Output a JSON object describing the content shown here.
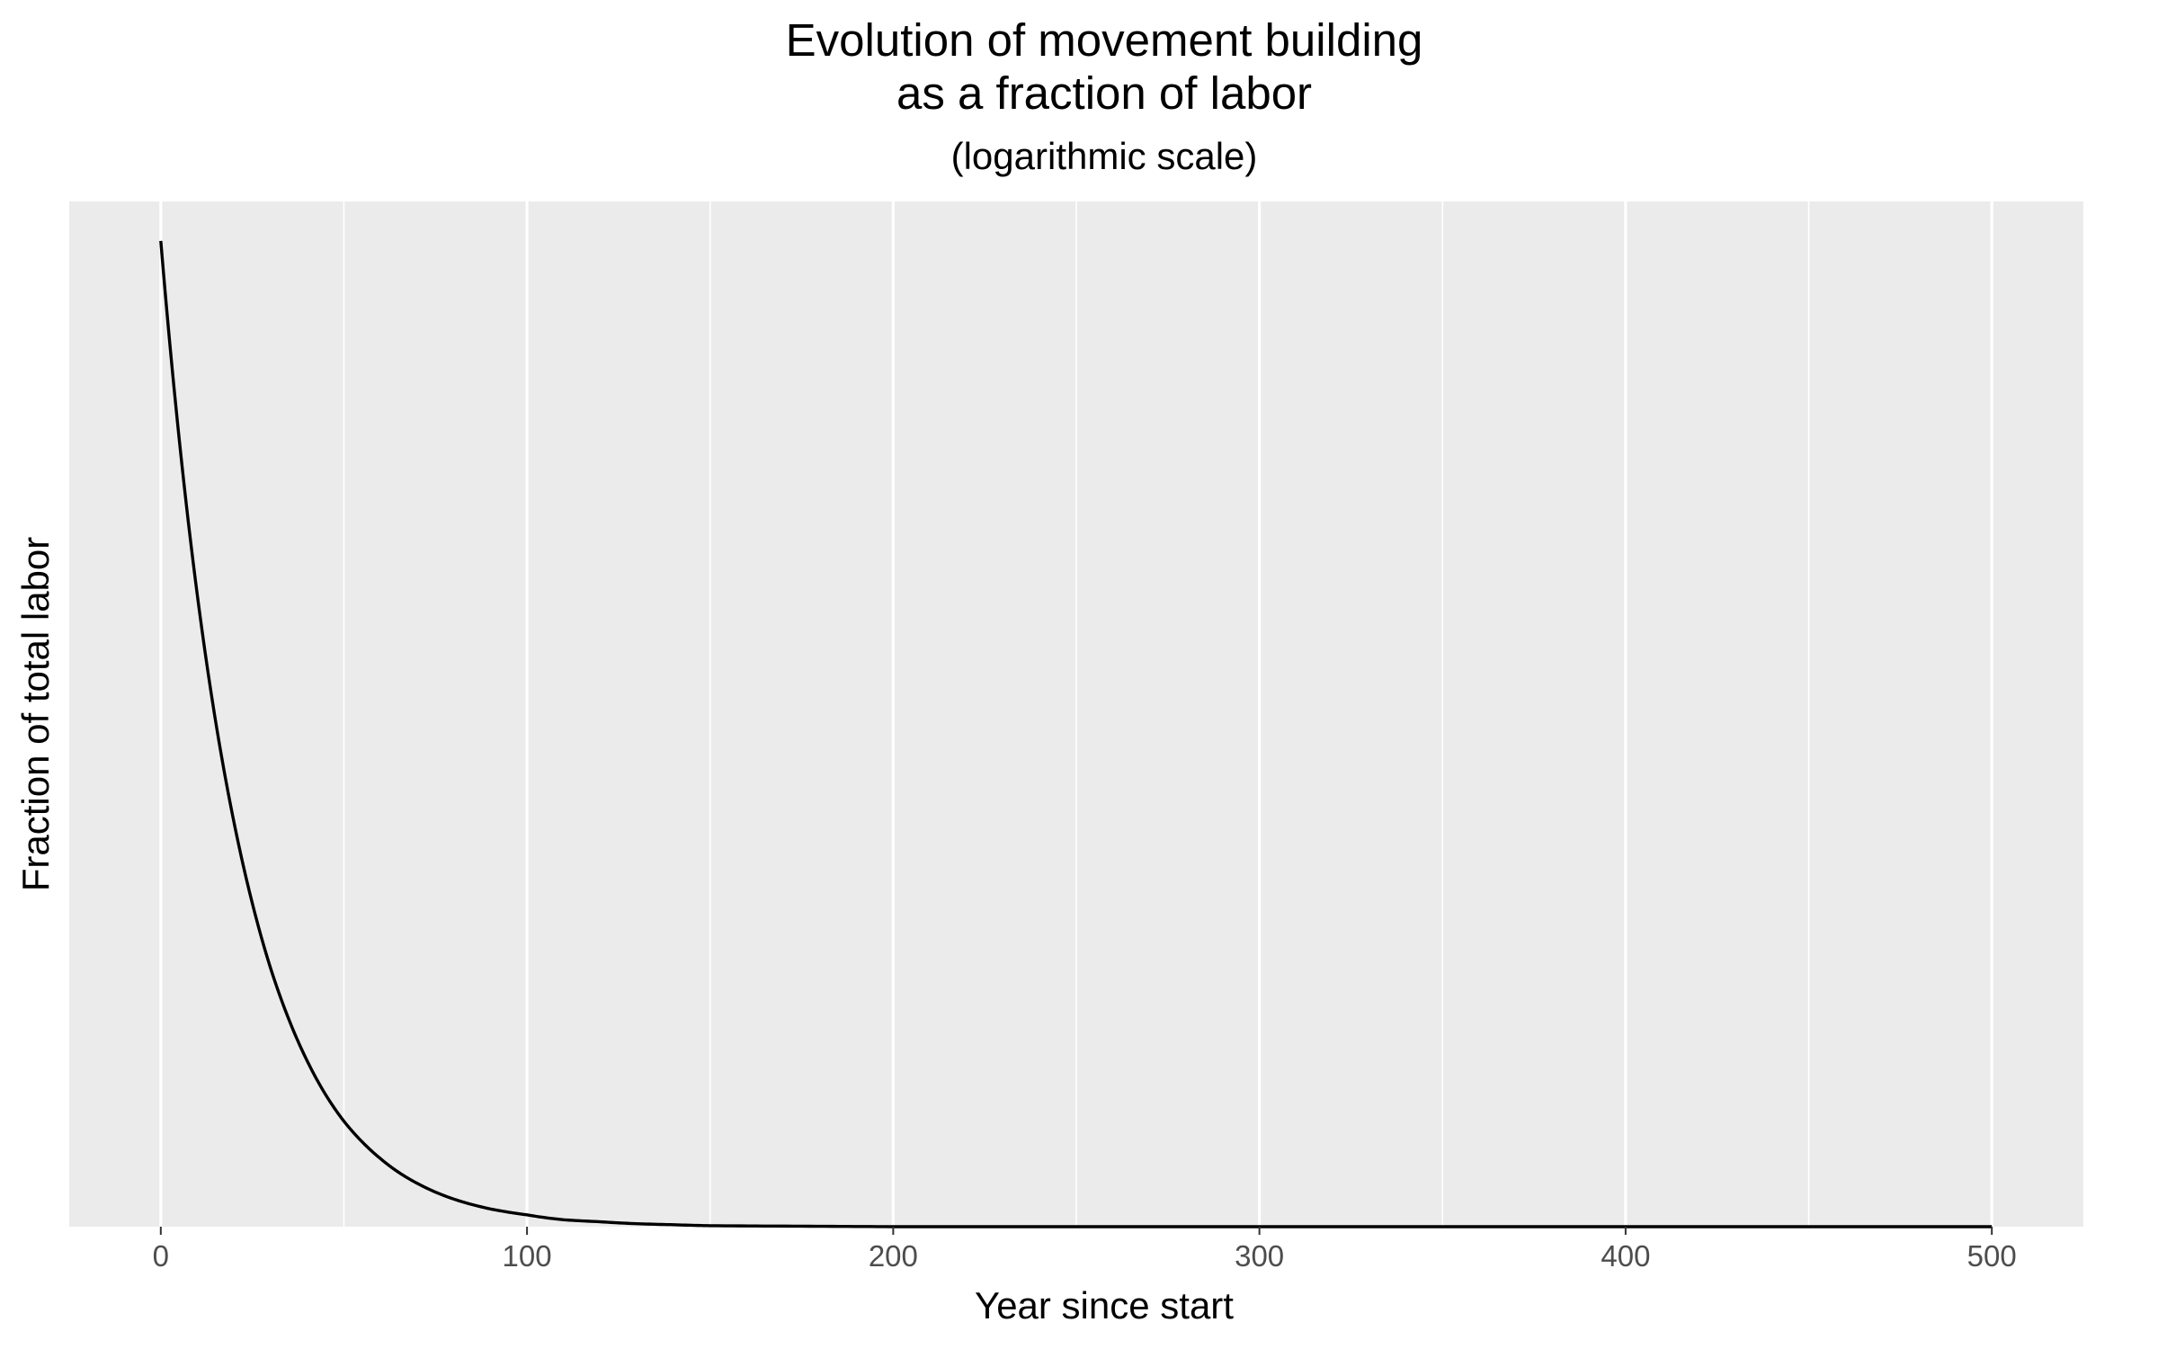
{
  "chart_data": {
    "type": "line",
    "title": "Evolution of movement building\nas a fraction of labor",
    "title_lines": [
      "Evolution of movement building",
      "as a fraction of labor"
    ],
    "subtitle": "(logarithmic scale)",
    "xlabel": "Year since start",
    "ylabel": "Fraction of total labor",
    "xlim": [
      -25,
      525
    ],
    "x_major_ticks": [
      0,
      100,
      200,
      300,
      400,
      500
    ],
    "x_minor_ticks": [
      50,
      150,
      250,
      350,
      450
    ],
    "x_tick_labels": [
      "0",
      "100",
      "200",
      "300",
      "400",
      "500"
    ],
    "y_tick_labels": [],
    "ylim": [
      0,
      1.04
    ],
    "grid": true,
    "background_color": "#ebebeb",
    "gridline_color": "#ffffff",
    "line_color": "#000000",
    "series": [
      {
        "x": [
          0,
          5,
          10,
          15,
          20,
          25,
          30,
          35,
          40,
          45,
          50,
          55,
          60,
          65,
          70,
          80,
          90,
          100,
          110,
          120,
          130,
          140,
          150,
          175,
          200,
          250,
          300,
          350,
          400,
          450,
          500
        ],
        "y": [
          1.0,
          0.8,
          0.64,
          0.512,
          0.41,
          0.328,
          0.262,
          0.21,
          0.168,
          0.134,
          0.107,
          0.086,
          0.069,
          0.055,
          0.044,
          0.028,
          0.018,
          0.012,
          0.007,
          0.005,
          0.003,
          0.002,
          0.001,
          0.0005,
          0,
          0,
          0,
          0,
          0,
          0,
          0
        ]
      }
    ]
  }
}
